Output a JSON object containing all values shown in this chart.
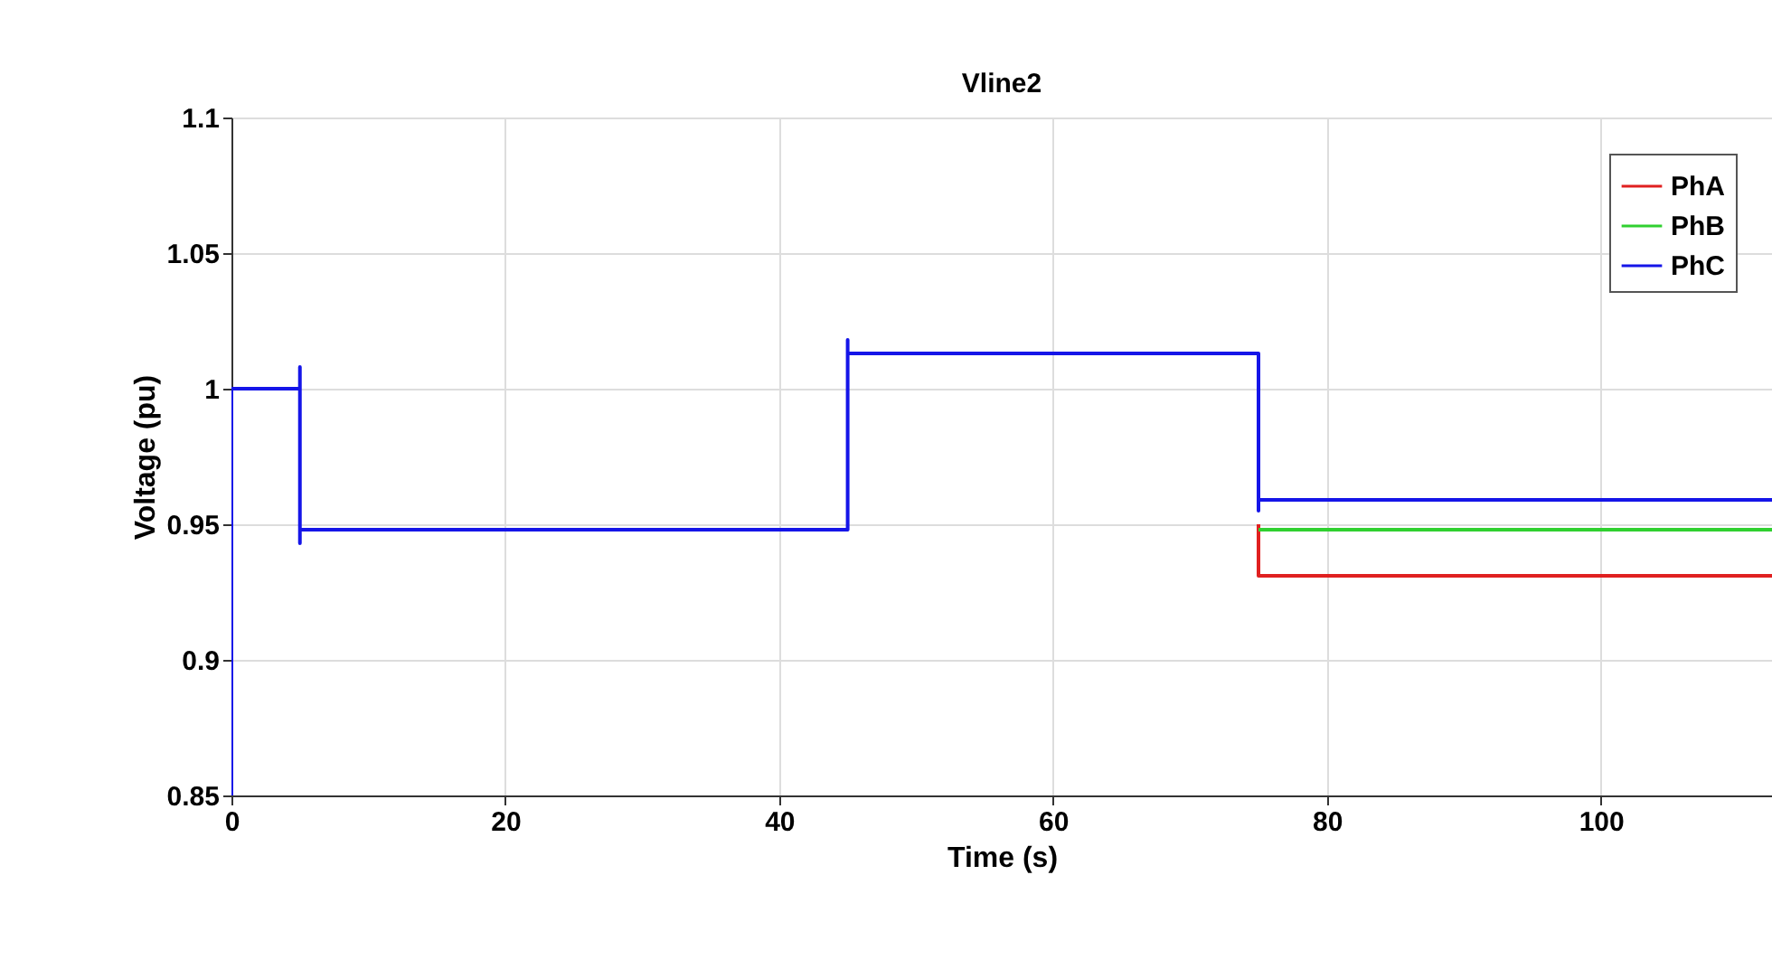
{
  "chart_data": {
    "type": "line",
    "title": "Vline2",
    "xlabel": "Time (s)",
    "ylabel": "Voltage (pu)",
    "xlim": [
      0,
      112.5
    ],
    "xticks": [
      0,
      20,
      40,
      60,
      80,
      100
    ],
    "ylim": [
      0.85,
      1.1
    ],
    "yticks": [
      0.85,
      0.9,
      0.95,
      1,
      1.05,
      1.1
    ],
    "grid": true,
    "legend": "top right",
    "line_style": "solid",
    "marker": "none",
    "series": [
      {
        "name": "PhA",
        "color": "#e02020",
        "x": [
          75,
          75,
          112.5
        ],
        "values": [
          0.95,
          0.931,
          0.931
        ]
      },
      {
        "name": "PhB",
        "color": "#30d030",
        "x": [
          75,
          112.5
        ],
        "values": [
          0.948,
          0.948
        ]
      },
      {
        "name": "PhC",
        "color": "#1515e8",
        "x": [
          0,
          0,
          5,
          5,
          5,
          5,
          45,
          45,
          45,
          75,
          75,
          75,
          112.5
        ],
        "values": [
          0.85,
          1.0,
          1.0,
          1.008,
          0.943,
          0.948,
          0.948,
          1.018,
          1.013,
          1.013,
          0.955,
          0.959,
          0.959
        ]
      }
    ]
  }
}
